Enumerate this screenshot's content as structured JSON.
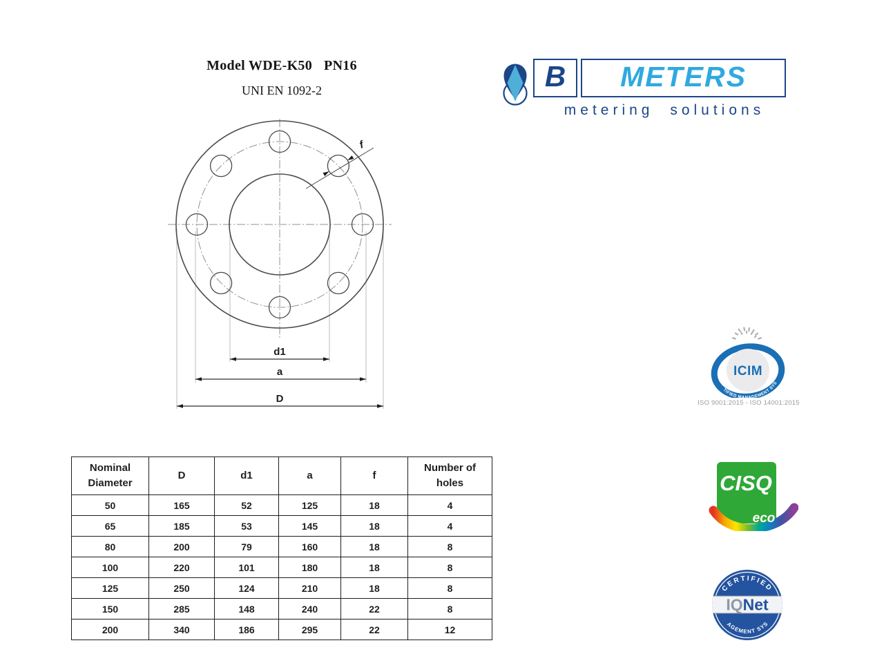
{
  "page": {
    "title_model": "Model WDE-K50",
    "title_pn": "PN16",
    "subtitle": "UNI EN 1092-2"
  },
  "brand": {
    "b": "B",
    "meters": "METERS",
    "tagline": "metering solutions"
  },
  "drawing": {
    "label_f": "f",
    "label_d1": "d1",
    "label_a": "a",
    "label_D": "D"
  },
  "table": {
    "headers": [
      "Nominal Diameter",
      "D",
      "d1",
      "a",
      "f",
      "Number of holes"
    ],
    "rows": [
      [
        "50",
        "165",
        "52",
        "125",
        "18",
        "4"
      ],
      [
        "65",
        "185",
        "53",
        "145",
        "18",
        "4"
      ],
      [
        "80",
        "200",
        "79",
        "160",
        "18",
        "8"
      ],
      [
        "100",
        "220",
        "101",
        "180",
        "18",
        "8"
      ],
      [
        "125",
        "250",
        "124",
        "210",
        "18",
        "8"
      ],
      [
        "150",
        "285",
        "148",
        "240",
        "22",
        "8"
      ],
      [
        "200",
        "340",
        "186",
        "295",
        "22",
        "12"
      ]
    ]
  },
  "certs": {
    "icim": {
      "name": "ICIM",
      "ring_text": "CERTIFIED MANAGEMENT SYSTEM",
      "iso_text": "ISO 9001:2015 - ISO 14001:2015"
    },
    "cisq": {
      "name": "CISQ",
      "eco": "eco"
    },
    "iqnet": {
      "top": "CERTIFIED",
      "bottom": "MANAGEMENT SYSTEM",
      "iq": "IQ",
      "net": "Net"
    }
  },
  "colors": {
    "brand_navy": "#1b4688",
    "brand_lightblue": "#2fa9df",
    "cisq_green": "#2fa838",
    "icim_blue": "#1a6fb5",
    "iqnet_blue": "#24539f"
  }
}
